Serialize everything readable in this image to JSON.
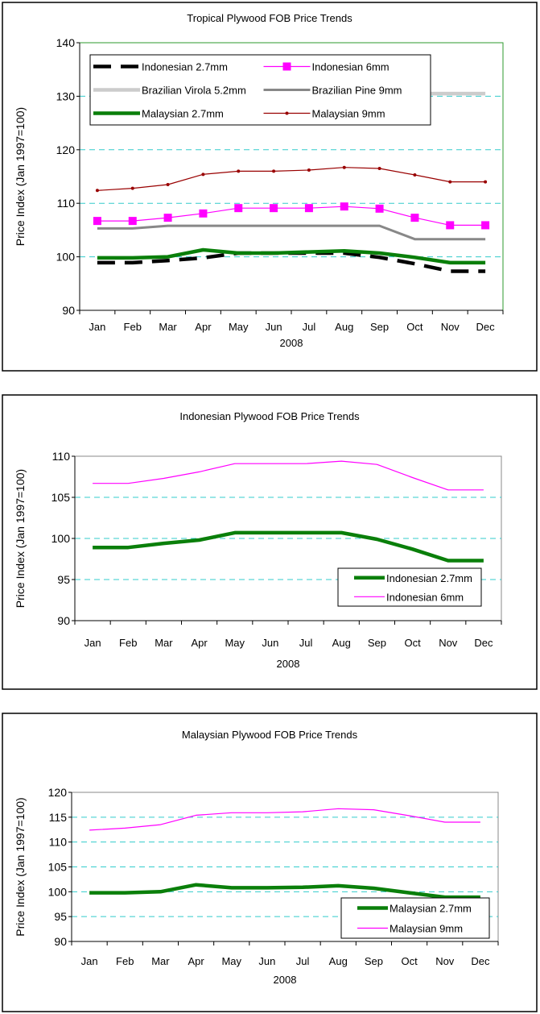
{
  "chart_data": [
    {
      "type": "line",
      "title": "Tropical Plywood FOB Price Trends",
      "xlabel": "2008",
      "ylabel": "Price Index (Jan 1997=100)",
      "ylim": [
        90,
        140
      ],
      "yticks": [
        90,
        100,
        110,
        120,
        130,
        140
      ],
      "grid": [
        100,
        110,
        120,
        130
      ],
      "legend": "top-left",
      "plot_border_color": "#2e9a2e",
      "categories": [
        "Jan",
        "Feb",
        "Mar",
        "Apr",
        "May",
        "Jun",
        "Jul",
        "Aug",
        "Sep",
        "Oct",
        "Nov",
        "Dec"
      ],
      "series": [
        {
          "name": "Indonesian 2.7mm",
          "color": "#000000",
          "style": "dashed-thick",
          "values": [
            98.9,
            98.9,
            99.3,
            99.8,
            100.7,
            100.7,
            100.7,
            100.7,
            99.9,
            98.7,
            97.3,
            97.3
          ]
        },
        {
          "name": "Indonesian 6mm",
          "color": "#ff00ff",
          "style": "square-markers",
          "values": [
            106.7,
            106.7,
            107.3,
            108.1,
            109.1,
            109.1,
            109.1,
            109.4,
            109.0,
            107.3,
            105.9,
            105.9
          ]
        },
        {
          "name": "Brazilian Virola 5.2mm",
          "color": "#cccccc",
          "style": "thick",
          "values": [
            128,
            128,
            128,
            128,
            128,
            128,
            128,
            128,
            128,
            130.5,
            130.5,
            130.5
          ]
        },
        {
          "name": "Brazilian Pine 9mm",
          "color": "#888888",
          "style": "medium",
          "values": [
            105.3,
            105.3,
            105.8,
            105.8,
            105.8,
            105.8,
            105.8,
            105.8,
            105.8,
            103.3,
            103.3,
            103.3
          ]
        },
        {
          "name": "Malaysian 2.7mm",
          "color": "#0a7f0a",
          "style": "thick",
          "values": [
            99.8,
            99.8,
            100.0,
            101.3,
            100.7,
            100.7,
            100.9,
            101.1,
            100.7,
            99.9,
            98.9,
            98.9
          ]
        },
        {
          "name": "Malaysian 9mm",
          "color": "#990000",
          "style": "dot-markers",
          "values": [
            112.4,
            112.8,
            113.5,
            115.4,
            116.0,
            116.0,
            116.2,
            116.7,
            116.5,
            115.3,
            114.0,
            114.0
          ]
        }
      ]
    },
    {
      "type": "line",
      "title": "Indonesian Plywood FOB Price Trends",
      "xlabel": "2008",
      "ylabel": "Price Index (Jan 1997=100)",
      "ylim": [
        90,
        110
      ],
      "yticks": [
        90,
        95,
        100,
        105,
        110
      ],
      "grid": [
        95,
        100,
        105
      ],
      "legend": "bottom-right",
      "plot_border_color": "#888888",
      "categories": [
        "Jan",
        "Feb",
        "Mar",
        "Apr",
        "May",
        "Jun",
        "Jul",
        "Aug",
        "Sep",
        "Oct",
        "Nov",
        "Dec"
      ],
      "series": [
        {
          "name": "Indonesian 2.7mm",
          "color": "#0a7f0a",
          "style": "thick",
          "values": [
            98.9,
            98.9,
            99.4,
            99.8,
            100.7,
            100.7,
            100.7,
            100.7,
            99.9,
            98.7,
            97.3,
            97.3
          ]
        },
        {
          "name": "Indonesian 6mm",
          "color": "#ff00ff",
          "style": "thin",
          "values": [
            106.7,
            106.7,
            107.3,
            108.1,
            109.1,
            109.1,
            109.1,
            109.4,
            109.0,
            107.4,
            105.9,
            105.9
          ]
        }
      ]
    },
    {
      "type": "line",
      "title": "Malaysian Plywood FOB Price Trends",
      "xlabel": "2008",
      "ylabel": "Price Index (Jan 1997=100)",
      "ylim": [
        90,
        120
      ],
      "yticks": [
        90,
        95,
        100,
        105,
        110,
        115,
        120
      ],
      "grid": [
        95,
        100,
        105,
        110,
        115
      ],
      "legend": "bottom-right",
      "plot_border_color": "#888888",
      "categories": [
        "Jan",
        "Feb",
        "Mar",
        "Apr",
        "May",
        "Jun",
        "Jul",
        "Aug",
        "Sep",
        "Oct",
        "Nov",
        "Dec"
      ],
      "series": [
        {
          "name": "Malaysian 2.7mm",
          "color": "#0a7f0a",
          "style": "thick",
          "values": [
            99.8,
            99.8,
            100.0,
            101.4,
            100.8,
            100.8,
            100.9,
            101.2,
            100.7,
            99.8,
            98.9,
            98.9
          ]
        },
        {
          "name": "Malaysian 9mm",
          "color": "#ff00ff",
          "style": "thin",
          "values": [
            112.4,
            112.8,
            113.5,
            115.4,
            115.9,
            115.9,
            116.1,
            116.7,
            116.5,
            115.3,
            114.0,
            114.0
          ]
        }
      ]
    }
  ]
}
